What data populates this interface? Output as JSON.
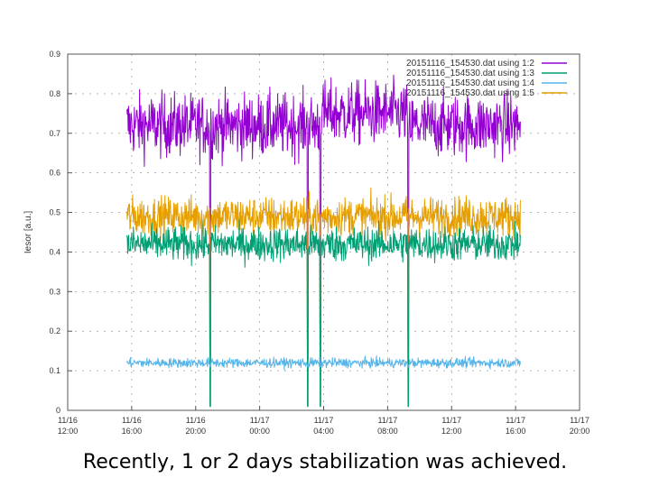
{
  "caption": "Recently, 1 or 2 days stabilization was achieved.",
  "chart_data": {
    "type": "line",
    "title": "",
    "ylabel": "Iesor [a.u.]",
    "xlabel": "",
    "ylim": [
      0,
      0.9
    ],
    "yticks": [
      0,
      0.1,
      0.2,
      0.3,
      0.4,
      0.5,
      0.6,
      0.7,
      0.8,
      0.9
    ],
    "ytick_labels": [
      "0",
      "0.1",
      "0.2",
      "0.3",
      "0.4",
      "0.5",
      "0.6",
      "0.7",
      "0.8",
      "0.9"
    ],
    "xlim_hours": [
      0,
      32
    ],
    "xticks": [
      {
        "hour": 0,
        "date": "11/16",
        "time": "12:00"
      },
      {
        "hour": 4,
        "date": "11/16",
        "time": "16:00"
      },
      {
        "hour": 8,
        "date": "11/16",
        "time": "20:00"
      },
      {
        "hour": 12,
        "date": "11/17",
        "time": "00:00"
      },
      {
        "hour": 16,
        "date": "11/17",
        "time": "04:00"
      },
      {
        "hour": 20,
        "date": "11/17",
        "time": "08:00"
      },
      {
        "hour": 24,
        "date": "11/17",
        "time": "12:00"
      },
      {
        "hour": 28,
        "date": "11/17",
        "time": "16:00"
      },
      {
        "hour": 32,
        "date": "11/17",
        "time": "20:00"
      }
    ],
    "grid": true,
    "legend_position": "top-right",
    "data_range_hours": [
      3.7,
      28.3
    ],
    "dropout_hours": [
      8.9,
      15.0,
      15.8,
      21.3
    ],
    "series": [
      {
        "name": "20151116_154530.dat using 1:2",
        "color": "#9400d3",
        "level": 0.72,
        "noise": 0.04
      },
      {
        "name": "20151116_154530.dat using 1:3",
        "color": "#009e73",
        "level": 0.42,
        "noise": 0.022
      },
      {
        "name": "20151116_154530.dat using 1:4",
        "color": "#56b4e9",
        "level": 0.12,
        "noise": 0.006
      },
      {
        "name": "20151116_154530.dat using 1:5",
        "color": "#e69f00",
        "level": 0.49,
        "noise": 0.025
      }
    ]
  }
}
